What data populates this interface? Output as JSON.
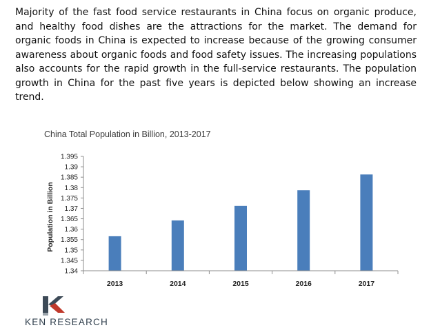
{
  "paragraph": "Majority of the fast food service restaurants in China focus on organic produce, and healthy food dishes are the attractions for the market. The demand for organic foods in China is expected to increase because of the growing consumer awareness about organic foods and food safety issues. The increasing populations also accounts for the rapid growth in the full-service restaurants. The population growth in China for the past five years is depicted below showing an increase trend.",
  "chart_data": {
    "type": "bar",
    "title": "China Total Population in Billion, 2013-2017",
    "xlabel": "",
    "ylabel": "Population in Billion",
    "categories": [
      "2013",
      "2014",
      "2015",
      "2016",
      "2017"
    ],
    "values": [
      1.3566,
      1.3642,
      1.3712,
      1.3787,
      1.3863
    ],
    "ylim": [
      1.34,
      1.395
    ],
    "yticks": [
      "1.34",
      "1.345",
      "1.35",
      "1.355",
      "1.36",
      "1.365",
      "1.37",
      "1.375",
      "1.38",
      "1.385",
      "1.39",
      "1.395"
    ],
    "grid": false,
    "legend": "none",
    "bar_color": "#4a7ebb"
  },
  "logo": {
    "name": "KEN RESEARCH",
    "colors": {
      "dark": "#3d4a57",
      "accent": "#c0392b"
    }
  }
}
